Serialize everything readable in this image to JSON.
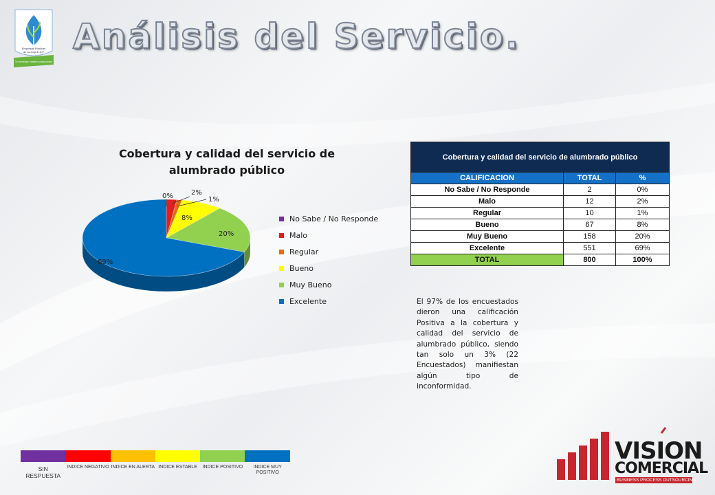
{
  "title": "Análisis del Servicio.",
  "logo": {
    "caption_line1": "Empresas Públicas",
    "caption_line2": "de La Ceja E.S.P.",
    "badge": "Tu bienestar, nuestro compromiso"
  },
  "chart_data": {
    "type": "pie",
    "style": "3d",
    "title": "Cobertura y calidad del servicio de alumbrado público",
    "categories": [
      "No Sabe / No Responde",
      "Malo",
      "Regular",
      "Bueno",
      "Muy Bueno",
      "Excelente"
    ],
    "values": [
      0,
      2,
      1,
      8,
      20,
      69
    ],
    "data_labels": [
      "0%",
      "2%",
      "1%",
      "8%",
      "20%",
      "69%"
    ],
    "colors": [
      "#7030a0",
      "#e02020",
      "#e46c0a",
      "#ffff00",
      "#92d050",
      "#0070c0"
    ],
    "legend": "right"
  },
  "table": {
    "title": "Cobertura y calidad del servicio de alumbrado público",
    "headers": [
      "CALIFICACION",
      "TOTAL",
      "%"
    ],
    "rows": [
      [
        "No Sabe / No Responde",
        "2",
        "0%"
      ],
      [
        "Malo",
        "12",
        "2%"
      ],
      [
        "Regular",
        "10",
        "1%"
      ],
      [
        "Bueno",
        "67",
        "8%"
      ],
      [
        "Muy Bueno",
        "158",
        "20%"
      ],
      [
        "Excelente",
        "551",
        "69%"
      ]
    ],
    "total": [
      "TOTAL",
      "800",
      "100%"
    ]
  },
  "note": "El 97% de los encuestados dieron una calificación Positiva a la cobertura y calidad del servicio de alumbrado público, siendo tan solo un 3% (22 Encuestados) manifiestan algún tipo de inconformidad.",
  "scale": [
    {
      "label": "SIN RESPUESTA",
      "color": "#7030a0"
    },
    {
      "label": "INDICE NEGATIVO",
      "color": "#ff0000"
    },
    {
      "label": "INDICE EN ALERTA",
      "color": "#ffc000"
    },
    {
      "label": "INDICE ESTABLE",
      "color": "#ffff00"
    },
    {
      "label": "INDICE POSITIVO",
      "color": "#92d050"
    },
    {
      "label": "INDICE MUY POSITIVO",
      "color": "#0070c0"
    }
  ],
  "brand": {
    "name_line1": "VISION",
    "name_line2": "COMERCIAL",
    "tagline": "BUSINESS PROCESS OUTSOURCING",
    "accent": "#c6262e"
  }
}
